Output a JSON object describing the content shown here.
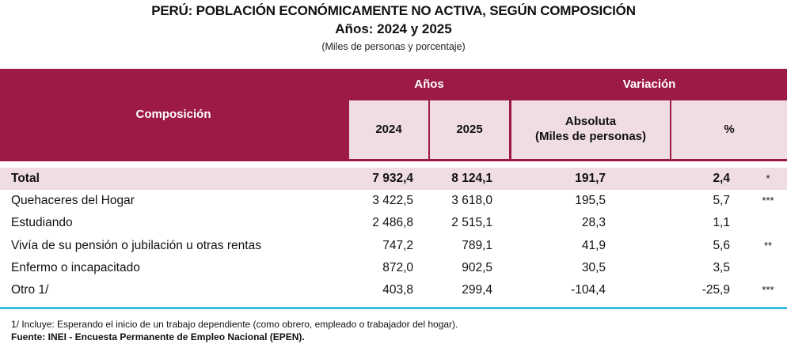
{
  "title": {
    "line1": "PERÚ: POBLACIÓN ECONÓMICAMENTE NO ACTIVA, SEGÚN COMPOSICIÓN",
    "line2": "Años: 2024 y 2025",
    "subtitle": "(Miles de personas y porcentaje)"
  },
  "colors": {
    "header": "#9E1A46",
    "subheader": "#EFDDE2",
    "rule": "#3DBDE0"
  },
  "table": {
    "headers": {
      "composicion": "Composición",
      "anios": "Años",
      "variacion": "Variación",
      "y2024": "2024",
      "y2025": "2025",
      "absoluta_line1": "Absoluta",
      "absoluta_line2": "(Miles de personas)",
      "pct": "%"
    },
    "rows": [
      {
        "label": "Total",
        "v2024": "7 932,4",
        "v2025": "8 124,1",
        "abs": "191,7",
        "pct": "2,4",
        "sig": "*"
      },
      {
        "label": "Quehaceres del Hogar",
        "v2024": "3 422,5",
        "v2025": "3 618,0",
        "abs": "195,5",
        "pct": "5,7",
        "sig": "***"
      },
      {
        "label": "Estudiando",
        "v2024": "2 486,8",
        "v2025": "2 515,1",
        "abs": "28,3",
        "pct": "1,1",
        "sig": ""
      },
      {
        "label": "Vivía de su pensión o jubilación u otras rentas",
        "v2024": "747,2",
        "v2025": "789,1",
        "abs": "41,9",
        "pct": "5,6",
        "sig": "**"
      },
      {
        "label": "Enfermo o incapacitado",
        "v2024": "872,0",
        "v2025": "902,5",
        "abs": "30,5",
        "pct": "3,5",
        "sig": ""
      },
      {
        "label": "Otro 1/",
        "v2024": "403,8",
        "v2025": "299,4",
        "abs": "-104,4",
        "pct": "-25,9",
        "sig": "***"
      }
    ]
  },
  "notes": {
    "footnote": "1/ Incluye: Esperando el inicio de un trabajo dependiente (como obrero, empleado o trabajador del hogar).",
    "source": "Fuente: INEI - Encuesta Permanente de Empleo Nacional (EPEN)."
  }
}
